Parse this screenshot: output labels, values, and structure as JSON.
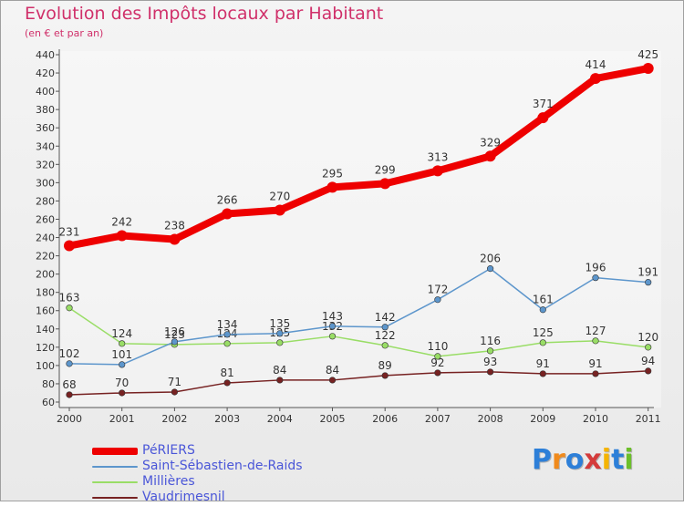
{
  "chart_data": {
    "type": "line",
    "title": "Evolution des Impôts locaux par Habitant",
    "subtitle": "(en € et par an)",
    "xlabel": "",
    "ylabel": "",
    "categories": [
      "2000",
      "2001",
      "2002",
      "2003",
      "2004",
      "2005",
      "2006",
      "2007",
      "2008",
      "2009",
      "2010",
      "2011"
    ],
    "ylim": [
      60,
      440
    ],
    "yticks": [
      60,
      80,
      100,
      120,
      140,
      160,
      180,
      200,
      220,
      240,
      260,
      280,
      300,
      320,
      340,
      360,
      380,
      400,
      420,
      440
    ],
    "grid": false,
    "legend_position": "bottom-left",
    "series": [
      {
        "name": "PéRIERS",
        "color": "#ee0000",
        "values": [
          231,
          242,
          238,
          266,
          270,
          295,
          299,
          313,
          329,
          371,
          414,
          425
        ]
      },
      {
        "name": "Saint-Sébastien-de-Raids",
        "color": "#5d96cc",
        "values": [
          102,
          101,
          126,
          134,
          135,
          143,
          142,
          172,
          206,
          161,
          196,
          191
        ]
      },
      {
        "name": "Millières",
        "color": "#99dd66",
        "values": [
          163,
          124,
          123,
          124,
          125,
          132,
          122,
          110,
          116,
          125,
          127,
          120
        ]
      },
      {
        "name": "Vaudrimesnil",
        "color": "#772222",
        "values": [
          68,
          70,
          71,
          81,
          84,
          84,
          89,
          92,
          93,
          91,
          91,
          94
        ]
      }
    ]
  },
  "brand": {
    "letters": [
      "P",
      "r",
      "o",
      "x",
      "i",
      "t",
      "i"
    ],
    "colors": [
      "#2d7fd8",
      "#f08a1c",
      "#2d7fd8",
      "#d43b3b",
      "#f5b400",
      "#2d7fd8",
      "#6cbf2a"
    ]
  }
}
